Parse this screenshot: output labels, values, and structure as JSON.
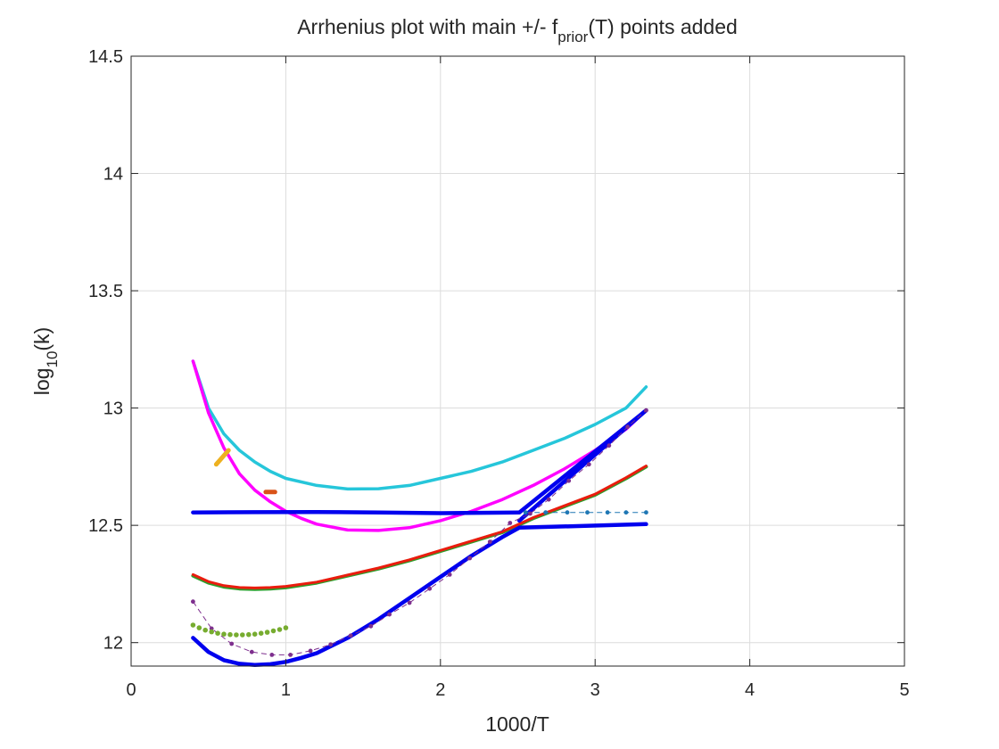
{
  "chart_data": {
    "type": "line",
    "title_main": "Arrhenius plot with main +/- f",
    "title_sub": "prior",
    "title_tail": "(T) points added",
    "xlabel": "1000/T",
    "ylabel_main": "log",
    "ylabel_sub": "10",
    "ylabel_tail": "(k)",
    "xlim": [
      0,
      5
    ],
    "ylim": [
      11.9,
      14.5
    ],
    "grid": true,
    "xticks": [
      0,
      1,
      2,
      3,
      4,
      5
    ],
    "xtick_labels": [
      "0",
      "1",
      "2",
      "3",
      "4",
      "5"
    ],
    "yticks": [
      12,
      12.5,
      13,
      13.5,
      14,
      14.5
    ],
    "ytick_labels": [
      "12",
      "12.5",
      "13",
      "13.5",
      "14",
      "14.5"
    ],
    "series": [
      {
        "color": "#26c6da",
        "width": 3.5,
        "style": "line",
        "x": [
          0.4,
          0.5,
          0.6,
          0.7,
          0.8,
          0.9,
          1.0,
          1.2,
          1.4,
          1.6,
          1.8,
          2.0,
          2.2,
          2.4,
          2.6,
          2.8,
          3.0,
          3.2,
          3.33
        ],
        "y": [
          13.2,
          13.0,
          12.89,
          12.82,
          12.77,
          12.73,
          12.7,
          12.67,
          12.655,
          12.656,
          12.67,
          12.7,
          12.73,
          12.77,
          12.82,
          12.87,
          12.93,
          13.0,
          13.09
        ]
      },
      {
        "color": "#ff00ff",
        "width": 3.5,
        "style": "line",
        "x": [
          0.4,
          0.5,
          0.6,
          0.7,
          0.8,
          0.9,
          1.0,
          1.1,
          1.2,
          1.4,
          1.6,
          1.8,
          2.0,
          2.2,
          2.4,
          2.6,
          2.8,
          3.0,
          3.2,
          3.33
        ],
        "y": [
          13.2,
          12.98,
          12.83,
          12.72,
          12.65,
          12.6,
          12.56,
          12.53,
          12.505,
          12.48,
          12.478,
          12.49,
          12.52,
          12.56,
          12.61,
          12.67,
          12.74,
          12.82,
          12.91,
          12.99
        ]
      },
      {
        "color": "#2c9e2c",
        "width": 4,
        "style": "line",
        "x": [
          0.4,
          0.5,
          0.6,
          0.7,
          0.8,
          0.9,
          1.0,
          1.2,
          1.4,
          1.6,
          1.8,
          2.0,
          2.2,
          2.4,
          2.6,
          2.8,
          3.0,
          3.2,
          3.33
        ],
        "y": [
          12.285,
          12.255,
          12.238,
          12.23,
          12.228,
          12.23,
          12.235,
          12.255,
          12.285,
          12.315,
          12.35,
          12.39,
          12.43,
          12.47,
          12.53,
          12.58,
          12.63,
          12.7,
          12.75
        ]
      },
      {
        "color": "#ea1c0e",
        "width": 3,
        "style": "line",
        "x": [
          0.4,
          0.5,
          0.6,
          0.7,
          0.8,
          0.9,
          1.0,
          1.2,
          1.4,
          1.6,
          1.8,
          2.0,
          2.2,
          2.4,
          2.6,
          2.8,
          3.0,
          3.2,
          3.33
        ],
        "y": [
          12.29,
          12.26,
          12.243,
          12.235,
          12.233,
          12.235,
          12.24,
          12.258,
          12.288,
          12.318,
          12.353,
          12.393,
          12.433,
          12.473,
          12.533,
          12.583,
          12.633,
          12.703,
          12.753
        ]
      },
      {
        "color": "#0000ee",
        "width": 4.5,
        "style": "line",
        "x": [
          0.4,
          0.8,
          1.2,
          1.6,
          2.0,
          2.51
        ],
        "y": [
          12.555,
          12.556,
          12.557,
          12.555,
          12.552,
          12.555
        ]
      },
      {
        "color": "#0000ee",
        "width": 4.5,
        "style": "line",
        "x": [
          2.51,
          3.33
        ],
        "y": [
          12.555,
          12.99
        ]
      },
      {
        "color": "#0000ee",
        "width": 4.5,
        "style": "line",
        "x": [
          0.4,
          0.5,
          0.6,
          0.7,
          0.8,
          0.9,
          1.0,
          1.1,
          1.2,
          1.4,
          1.6,
          1.8,
          2.0,
          2.2,
          2.4,
          2.51
        ],
        "y": [
          12.02,
          11.96,
          11.925,
          11.91,
          11.905,
          11.908,
          11.918,
          11.935,
          11.955,
          12.02,
          12.1,
          12.19,
          12.28,
          12.37,
          12.45,
          12.49
        ]
      },
      {
        "color": "#0000ee",
        "width": 4.5,
        "style": "line",
        "x": [
          2.51,
          3.33
        ],
        "y": [
          12.49,
          12.505
        ]
      },
      {
        "color": "#0000ee",
        "width": 4.5,
        "style": "line",
        "x": [
          2.51,
          3.33
        ],
        "y": [
          12.52,
          12.99
        ]
      },
      {
        "color": "#1f77b4",
        "width": 1,
        "style": "dots-dashed",
        "x": [
          2.55,
          2.68,
          2.82,
          2.95,
          3.08,
          3.2,
          3.33
        ],
        "y": [
          12.555,
          12.555,
          12.555,
          12.555,
          12.555,
          12.555,
          12.555
        ]
      },
      {
        "color": "#7e2f8e",
        "width": 1,
        "style": "dots-dashed",
        "x": [
          0.4,
          0.52,
          0.65,
          0.78,
          0.91,
          1.03,
          1.16,
          1.29,
          1.42,
          1.55,
          1.67,
          1.8,
          1.93,
          2.06,
          2.19,
          2.32,
          2.45,
          2.58,
          2.7,
          2.83,
          2.96,
          3.09,
          3.21,
          3.33
        ],
        "y": [
          12.175,
          12.06,
          11.995,
          11.96,
          11.948,
          11.948,
          11.965,
          11.992,
          12.03,
          12.07,
          12.12,
          12.17,
          12.23,
          12.29,
          12.36,
          12.43,
          12.51,
          12.55,
          12.61,
          12.69,
          12.76,
          12.84,
          12.92,
          12.99
        ]
      },
      {
        "color": "#77ac30",
        "width": 1.5,
        "style": "dots",
        "x": [
          0.4,
          0.44,
          0.48,
          0.52,
          0.56,
          0.6,
          0.64,
          0.68,
          0.72,
          0.76,
          0.8,
          0.84,
          0.88,
          0.92,
          0.96,
          1.0
        ],
        "y": [
          12.075,
          12.063,
          12.053,
          12.046,
          12.04,
          12.036,
          12.034,
          12.033,
          12.033,
          12.034,
          12.036,
          12.04,
          12.044,
          12.05,
          12.056,
          12.063
        ]
      },
      {
        "color": "#edb120",
        "width": 5,
        "style": "line",
        "x": [
          0.55,
          0.63
        ],
        "y": [
          12.76,
          12.82
        ]
      },
      {
        "color": "#d95319",
        "width": 5,
        "style": "line",
        "x": [
          0.87,
          0.93
        ],
        "y": [
          12.642,
          12.642
        ]
      }
    ]
  }
}
